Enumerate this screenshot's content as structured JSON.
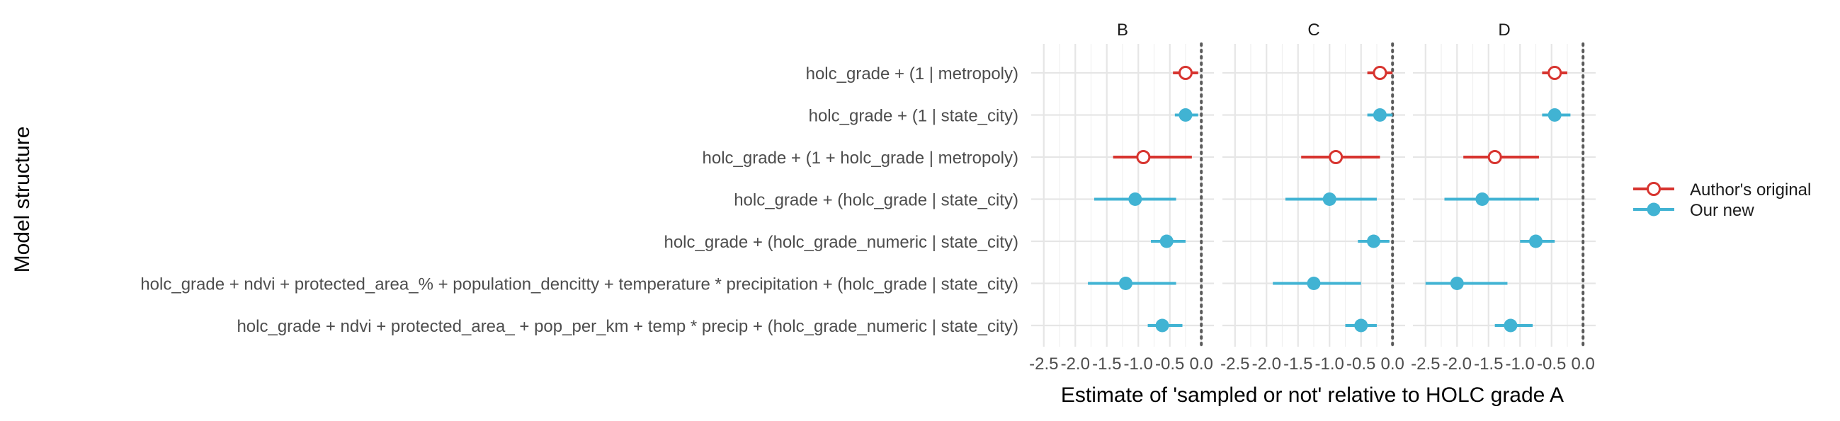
{
  "chart_data": {
    "type": "scatter",
    "subtype": "faceted-coefficient-plot",
    "ylabel": "Model structure",
    "xlabel": "Estimate of 'sampled or not' relative to HOLC grade A",
    "legend_position": "right",
    "grid": true,
    "reference_line": {
      "x": 0,
      "style": "dotted"
    },
    "xlim": [
      -2.7,
      0.2
    ],
    "x_ticks": [
      -2.5,
      -2.0,
      -1.5,
      -1.0,
      -0.5,
      0.0
    ],
    "x_tick_labels": [
      "-2.5",
      "-2.0",
      "-1.5",
      "-1.0",
      "-0.5",
      "0.0"
    ],
    "models": [
      "holc_grade + (1 | metropoly)",
      "holc_grade + (1 | state_city)",
      "holc_grade + (1 + holc_grade | metropoly)",
      "holc_grade + (holc_grade | state_city)",
      "holc_grade + (holc_grade_numeric | state_city)",
      "holc_grade + ndvi + protected_area_% + population_dencitty + temperature * precipitation + (holc_grade | state_city)",
      "holc_grade + ndvi + protected_area_ + pop_per_km + temp * precip + (holc_grade_numeric | state_city)"
    ],
    "series": [
      {
        "name": "Author's original",
        "color": "#d7342f",
        "marker": "open-circle"
      },
      {
        "name": "Our new",
        "color": "#41b3d3",
        "marker": "filled-circle"
      }
    ],
    "facets": [
      {
        "label": "B",
        "points": [
          {
            "model": 0,
            "series": 0,
            "estimate": -0.25,
            "low": -0.45,
            "high": -0.05
          },
          {
            "model": 1,
            "series": 1,
            "estimate": -0.25,
            "low": -0.42,
            "high": -0.05
          },
          {
            "model": 2,
            "series": 0,
            "estimate": -0.92,
            "low": -1.4,
            "high": -0.15
          },
          {
            "model": 3,
            "series": 1,
            "estimate": -1.05,
            "low": -1.7,
            "high": -0.4
          },
          {
            "model": 4,
            "series": 1,
            "estimate": -0.55,
            "low": -0.8,
            "high": -0.25
          },
          {
            "model": 5,
            "series": 1,
            "estimate": -1.2,
            "low": -1.8,
            "high": -0.4
          },
          {
            "model": 6,
            "series": 1,
            "estimate": -0.62,
            "low": -0.85,
            "high": -0.3
          }
        ]
      },
      {
        "label": "C",
        "points": [
          {
            "model": 0,
            "series": 0,
            "estimate": -0.2,
            "low": -0.4,
            "high": 0.0
          },
          {
            "model": 1,
            "series": 1,
            "estimate": -0.2,
            "low": -0.4,
            "high": 0.0
          },
          {
            "model": 2,
            "series": 0,
            "estimate": -0.9,
            "low": -1.45,
            "high": -0.2
          },
          {
            "model": 3,
            "series": 1,
            "estimate": -1.0,
            "low": -1.7,
            "high": -0.25
          },
          {
            "model": 4,
            "series": 1,
            "estimate": -0.3,
            "low": -0.55,
            "high": -0.05
          },
          {
            "model": 5,
            "series": 1,
            "estimate": -1.25,
            "low": -1.9,
            "high": -0.5
          },
          {
            "model": 6,
            "series": 1,
            "estimate": -0.5,
            "low": -0.75,
            "high": -0.25
          }
        ]
      },
      {
        "label": "D",
        "points": [
          {
            "model": 0,
            "series": 0,
            "estimate": -0.45,
            "low": -0.65,
            "high": -0.25
          },
          {
            "model": 1,
            "series": 1,
            "estimate": -0.45,
            "low": -0.65,
            "high": -0.2
          },
          {
            "model": 2,
            "series": 0,
            "estimate": -1.4,
            "low": -1.9,
            "high": -0.7
          },
          {
            "model": 3,
            "series": 1,
            "estimate": -1.6,
            "low": -2.2,
            "high": -0.7
          },
          {
            "model": 4,
            "series": 1,
            "estimate": -0.75,
            "low": -1.0,
            "high": -0.45
          },
          {
            "model": 5,
            "series": 1,
            "estimate": -2.0,
            "low": -2.5,
            "high": -1.2
          },
          {
            "model": 6,
            "series": 1,
            "estimate": -1.15,
            "low": -1.4,
            "high": -0.8
          }
        ]
      }
    ]
  }
}
